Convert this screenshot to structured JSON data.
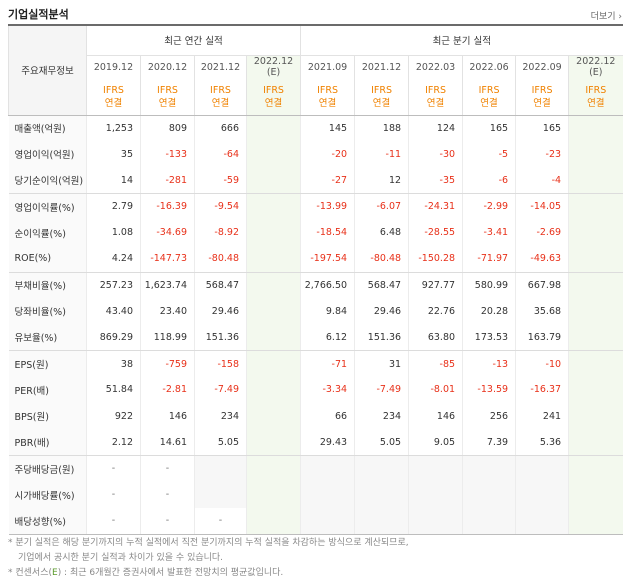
{
  "title": "기업실적분석",
  "more": "더보기",
  "header": {
    "row_label": "주요재무정보",
    "annual_group": "최근 연간 실적",
    "quarter_group": "최근 분기 실적",
    "periods": [
      "2019.12",
      "2020.12",
      "2021.12",
      "2022.12\n(E)",
      "2021.09",
      "2021.12",
      "2022.03",
      "2022.06",
      "2022.09",
      "2022.12\n(E)"
    ],
    "ifrs_top": "IFRS",
    "ifrs_bottom": "연결"
  },
  "rows": [
    {
      "label": "매출액(억원)",
      "values": [
        "1,253",
        "809",
        "666",
        "",
        "145",
        "188",
        "124",
        "165",
        "165",
        ""
      ]
    },
    {
      "label": "영업이익(억원)",
      "values": [
        "35",
        "-133",
        "-64",
        "",
        "-20",
        "-11",
        "-30",
        "-5",
        "-23",
        ""
      ]
    },
    {
      "label": "당기순이익(억원)",
      "values": [
        "14",
        "-281",
        "-59",
        "",
        "-27",
        "12",
        "-35",
        "-6",
        "-4",
        ""
      ]
    },
    {
      "label": "영업이익률(%)",
      "values": [
        "2.79",
        "-16.39",
        "-9.54",
        "",
        "-13.99",
        "-6.07",
        "-24.31",
        "-2.99",
        "-14.05",
        ""
      ]
    },
    {
      "label": "순이익률(%)",
      "values": [
        "1.08",
        "-34.69",
        "-8.92",
        "",
        "-18.54",
        "6.48",
        "-28.55",
        "-3.41",
        "-2.69",
        ""
      ]
    },
    {
      "label": "ROE(%)",
      "values": [
        "4.24",
        "-147.73",
        "-80.48",
        "",
        "-197.54",
        "-80.48",
        "-150.28",
        "-71.97",
        "-49.63",
        ""
      ]
    },
    {
      "label": "부채비율(%)",
      "values": [
        "257.23",
        "1,623.74",
        "568.47",
        "",
        "2,766.50",
        "568.47",
        "927.77",
        "580.99",
        "667.98",
        ""
      ]
    },
    {
      "label": "당좌비율(%)",
      "values": [
        "43.40",
        "23.40",
        "29.46",
        "",
        "9.84",
        "29.46",
        "22.76",
        "20.28",
        "35.68",
        ""
      ]
    },
    {
      "label": "유보율(%)",
      "values": [
        "869.29",
        "118.99",
        "151.36",
        "",
        "6.12",
        "151.36",
        "63.80",
        "173.53",
        "163.79",
        ""
      ]
    },
    {
      "label": "EPS(원)",
      "values": [
        "38",
        "-759",
        "-158",
        "",
        "-71",
        "31",
        "-85",
        "-13",
        "-10",
        ""
      ]
    },
    {
      "label": "PER(배)",
      "values": [
        "51.84",
        "-2.81",
        "-7.49",
        "",
        "-3.34",
        "-7.49",
        "-8.01",
        "-13.59",
        "-16.37",
        ""
      ]
    },
    {
      "label": "BPS(원)",
      "values": [
        "922",
        "146",
        "234",
        "",
        "66",
        "234",
        "146",
        "256",
        "241",
        ""
      ]
    },
    {
      "label": "PBR(배)",
      "values": [
        "2.12",
        "14.61",
        "5.05",
        "",
        "29.43",
        "5.05",
        "9.05",
        "7.39",
        "5.36",
        ""
      ]
    },
    {
      "label": "주당배당금(원)",
      "values": [
        "-",
        "-",
        "",
        "",
        "",
        "",
        "",
        "",
        "",
        ""
      ]
    },
    {
      "label": "시가배당률(%)",
      "values": [
        "-",
        "-",
        "",
        "",
        "",
        "",
        "",
        "",
        "",
        ""
      ]
    },
    {
      "label": "배당성향(%)",
      "values": [
        "-",
        "-",
        "-",
        "",
        "",
        "",
        "",
        "",
        "",
        ""
      ]
    }
  ],
  "notes": {
    "line1": "* 분기 실적은 해당 분기까지의 누적 실적에서 직전 분기까지의 누적 실적을 차감하는 방식으로 계산되므로,",
    "line2": "기업에서 공시한 분기 실적과 차이가 있을 수 있습니다.",
    "line3_prefix": "* 컨센서스(",
    "line3_e": "E",
    "line3_suffix": ") : 최근 6개월간 증권사에서 발표한 전망치의 평균값입니다."
  },
  "colors": {
    "negative": "#e8311a",
    "ifrs": "#f08200",
    "estimate_bg": "#f3f9ee",
    "consensus_e": "#5a9a2a"
  }
}
